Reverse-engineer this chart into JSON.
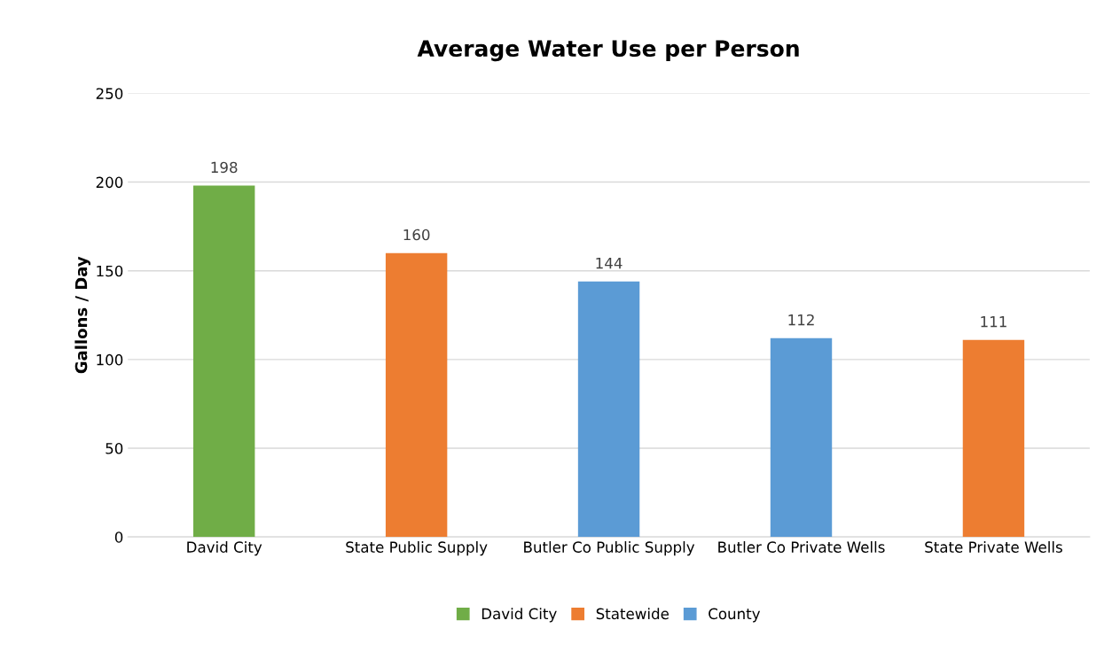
{
  "chart_data": {
    "type": "bar",
    "title": "Average Water Use per Person",
    "ylabel": "Gallons / Day",
    "categories": [
      "David City",
      "State Public Supply",
      "Butler Co Public Supply",
      "Butler Co Private Wells",
      "State Private Wells"
    ],
    "series": [
      {
        "name": "David City",
        "color": "#70ad47",
        "values": [
          198,
          null,
          null,
          null,
          null
        ]
      },
      {
        "name": "Statewide",
        "color": "#ed7d31",
        "values": [
          null,
          160,
          null,
          null,
          111
        ]
      },
      {
        "name": "County",
        "color": "#5b9bd5",
        "values": [
          null,
          null,
          144,
          112,
          null
        ]
      }
    ],
    "ylim": [
      0,
      250
    ],
    "yticks": [
      0,
      50,
      100,
      150,
      200,
      250
    ],
    "grid": "y",
    "legend": "bottom",
    "data_labels": true
  }
}
